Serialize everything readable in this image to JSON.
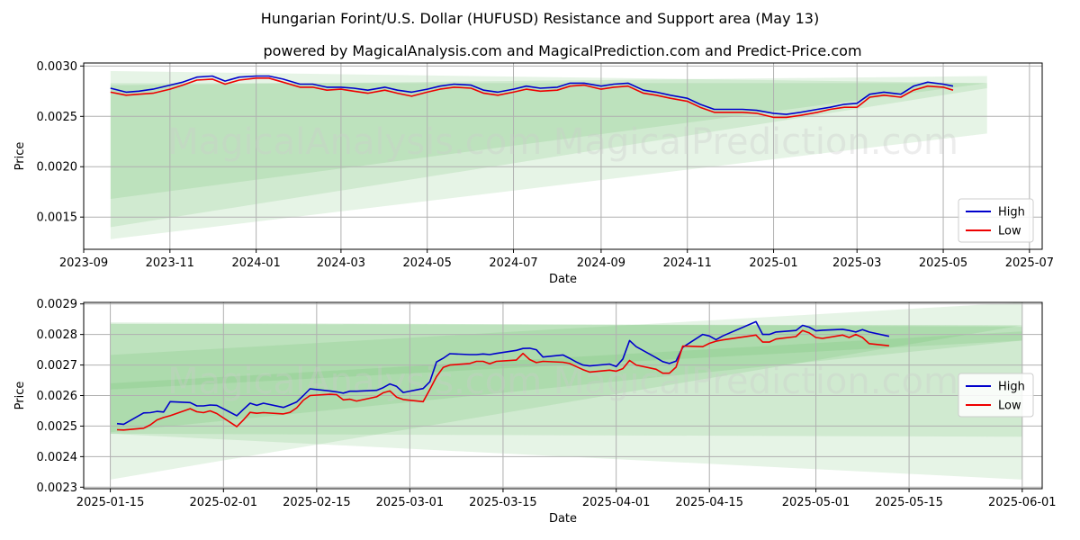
{
  "title": "Hungarian Forint/U.S. Dollar (HUFUSD) Resistance and Support area (May 13)",
  "subtitle": "powered by MagicalAnalysis.com and MagicalPrediction.com and Predict-Price.com",
  "watermark": "MagicalAnalysis.com    MagicalPrediction.com",
  "colors": {
    "high": "#0000cc",
    "low": "#ee0000",
    "band": "#4caf50",
    "grid": "#b0b0b0"
  },
  "chart_data": [
    {
      "type": "line",
      "xlabel": "Date",
      "ylabel": "Price",
      "xlim": [
        "2023-09-01",
        "2025-07-10"
      ],
      "ylim": [
        0.00118,
        0.00303
      ],
      "xticks": [
        "2023-09",
        "2023-11",
        "2024-01",
        "2024-03",
        "2024-05",
        "2024-07",
        "2024-09",
        "2024-11",
        "2025-01",
        "2025-03",
        "2025-05",
        "2025-07"
      ],
      "yticks": [
        "0.0015",
        "0.0020",
        "0.0025",
        "0.0030"
      ],
      "grid": true,
      "legend_position": "bottom-right",
      "bands": [
        {
          "x": [
            "2023-09-20",
            "2025-06-01"
          ],
          "upper": [
            0.00295,
            0.00283
          ],
          "lower": [
            0.00168,
            0.00283
          ]
        },
        {
          "x": [
            "2023-09-20",
            "2025-06-01"
          ],
          "upper": [
            0.00281,
            0.0029
          ],
          "lower": [
            0.00128,
            0.00233
          ]
        },
        {
          "x": [
            "2023-09-20",
            "2025-06-01"
          ],
          "upper": [
            0.00283,
            0.00283
          ],
          "lower": [
            0.0014,
            0.00278
          ]
        },
        {
          "x": [
            "2023-09-20",
            "2025-06-01"
          ],
          "upper": [
            0.00275,
            0.00247
          ],
          "lower": [
            0.00275,
            0.00247
          ]
        }
      ],
      "series": [
        {
          "name": "High",
          "x": [
            "2023-09-20",
            "2023-10-01",
            "2023-10-10",
            "2023-10-20",
            "2023-11-01",
            "2023-11-10",
            "2023-11-20",
            "2023-12-01",
            "2023-12-10",
            "2023-12-20",
            "2024-01-01",
            "2024-01-10",
            "2024-01-20",
            "2024-02-01",
            "2024-02-10",
            "2024-02-20",
            "2024-03-01",
            "2024-03-10",
            "2024-03-20",
            "2024-04-01",
            "2024-04-10",
            "2024-04-20",
            "2024-05-01",
            "2024-05-10",
            "2024-05-20",
            "2024-06-01",
            "2024-06-10",
            "2024-06-20",
            "2024-07-01",
            "2024-07-10",
            "2024-07-20",
            "2024-08-01",
            "2024-08-10",
            "2024-08-20",
            "2024-09-01",
            "2024-09-10",
            "2024-09-20",
            "2024-10-01",
            "2024-10-10",
            "2024-10-20",
            "2024-11-01",
            "2024-11-10",
            "2024-11-20",
            "2024-12-01",
            "2024-12-10",
            "2024-12-20",
            "2025-01-01",
            "2025-01-10",
            "2025-01-20",
            "2025-02-01",
            "2025-02-10",
            "2025-02-20",
            "2025-03-01",
            "2025-03-10",
            "2025-03-20",
            "2025-04-01",
            "2025-04-10",
            "2025-04-20",
            "2025-05-01",
            "2025-05-08"
          ],
          "values": [
            0.00278,
            0.00274,
            0.00275,
            0.00277,
            0.00281,
            0.00284,
            0.00289,
            0.0029,
            0.00285,
            0.00289,
            0.0029,
            0.0029,
            0.00287,
            0.00282,
            0.00282,
            0.00279,
            0.00279,
            0.00278,
            0.00276,
            0.00279,
            0.00276,
            0.00274,
            0.00277,
            0.0028,
            0.00282,
            0.00281,
            0.00276,
            0.00274,
            0.00277,
            0.0028,
            0.00278,
            0.00279,
            0.00283,
            0.00283,
            0.0028,
            0.00282,
            0.00283,
            0.00276,
            0.00274,
            0.00271,
            0.00268,
            0.00262,
            0.00257,
            0.00257,
            0.00257,
            0.00256,
            0.00253,
            0.00252,
            0.00254,
            0.00257,
            0.00259,
            0.00262,
            0.00263,
            0.00272,
            0.00274,
            0.00272,
            0.0028,
            0.00284,
            0.00282,
            0.0028
          ]
        },
        {
          "name": "Low",
          "x": [
            "2023-09-20",
            "2023-10-01",
            "2023-10-10",
            "2023-10-20",
            "2023-11-01",
            "2023-11-10",
            "2023-11-20",
            "2023-12-01",
            "2023-12-10",
            "2023-12-20",
            "2024-01-01",
            "2024-01-10",
            "2024-01-20",
            "2024-02-01",
            "2024-02-10",
            "2024-02-20",
            "2024-03-01",
            "2024-03-10",
            "2024-03-20",
            "2024-04-01",
            "2024-04-10",
            "2024-04-20",
            "2024-05-01",
            "2024-05-10",
            "2024-05-20",
            "2024-06-01",
            "2024-06-10",
            "2024-06-20",
            "2024-07-01",
            "2024-07-10",
            "2024-07-20",
            "2024-08-01",
            "2024-08-10",
            "2024-08-20",
            "2024-09-01",
            "2024-09-10",
            "2024-09-20",
            "2024-10-01",
            "2024-10-10",
            "2024-10-20",
            "2024-11-01",
            "2024-11-10",
            "2024-11-20",
            "2024-12-01",
            "2024-12-10",
            "2024-12-20",
            "2025-01-01",
            "2025-01-10",
            "2025-01-20",
            "2025-02-01",
            "2025-02-10",
            "2025-02-20",
            "2025-03-01",
            "2025-03-10",
            "2025-03-20",
            "2025-04-01",
            "2025-04-10",
            "2025-04-20",
            "2025-05-01",
            "2025-05-08"
          ],
          "values": [
            0.00274,
            0.00271,
            0.00272,
            0.00273,
            0.00277,
            0.00281,
            0.00286,
            0.00287,
            0.00282,
            0.00286,
            0.00288,
            0.00288,
            0.00284,
            0.00279,
            0.00279,
            0.00276,
            0.00277,
            0.00275,
            0.00273,
            0.00276,
            0.00273,
            0.0027,
            0.00274,
            0.00277,
            0.00279,
            0.00278,
            0.00273,
            0.00271,
            0.00274,
            0.00277,
            0.00275,
            0.00276,
            0.0028,
            0.00281,
            0.00277,
            0.00279,
            0.0028,
            0.00273,
            0.00271,
            0.00268,
            0.00265,
            0.00259,
            0.00254,
            0.00254,
            0.00254,
            0.00253,
            0.00249,
            0.00249,
            0.00251,
            0.00254,
            0.00257,
            0.00259,
            0.00259,
            0.00269,
            0.00271,
            0.00269,
            0.00276,
            0.0028,
            0.00279,
            0.00276
          ]
        }
      ]
    },
    {
      "type": "line",
      "xlabel": "Date",
      "ylabel": "Price",
      "xlim": [
        "2025-01-11",
        "2025-06-04"
      ],
      "ylim": [
        0.002295,
        0.002905
      ],
      "xticks": [
        "2025-01-15",
        "2025-02-01",
        "2025-02-15",
        "2025-03-01",
        "2025-03-15",
        "2025-04-01",
        "2025-04-15",
        "2025-05-01",
        "2025-05-15",
        "2025-06-01"
      ],
      "yticks": [
        "0.0023",
        "0.0024",
        "0.0025",
        "0.0026",
        "0.0027",
        "0.0028",
        "0.0029"
      ],
      "grid": true,
      "legend_position": "right",
      "bands": [
        {
          "x": [
            "2025-01-15",
            "2025-06-01"
          ],
          "upper": [
            0.002835,
            0.00283
          ],
          "lower": [
            0.002325,
            0.00283
          ]
        },
        {
          "x": [
            "2025-01-15",
            "2025-06-01"
          ],
          "upper": [
            0.002733,
            0.002905
          ],
          "lower": [
            0.002475,
            0.002325
          ]
        },
        {
          "x": [
            "2025-01-15",
            "2025-06-01"
          ],
          "upper": [
            0.002835,
            0.00283
          ],
          "lower": [
            0.00262,
            0.00278
          ]
        },
        {
          "x": [
            "2025-01-15",
            "2025-06-01"
          ],
          "upper": [
            0.00264,
            0.00281
          ],
          "lower": [
            0.002475,
            0.002465
          ]
        },
        {
          "x": [
            "2025-01-15",
            "2025-06-01"
          ],
          "upper": [
            0.00284,
            0.002825
          ],
          "lower": [
            0.00248,
            0.00278
          ]
        }
      ],
      "series": [
        {
          "name": "High",
          "x": [
            "2025-01-16",
            "2025-01-17",
            "2025-01-20",
            "2025-01-21",
            "2025-01-22",
            "2025-01-23",
            "2025-01-24",
            "2025-01-27",
            "2025-01-28",
            "2025-01-29",
            "2025-01-30",
            "2025-01-31",
            "2025-02-03",
            "2025-02-04",
            "2025-02-05",
            "2025-02-06",
            "2025-02-07",
            "2025-02-10",
            "2025-02-11",
            "2025-02-12",
            "2025-02-13",
            "2025-02-14",
            "2025-02-17",
            "2025-02-18",
            "2025-02-19",
            "2025-02-20",
            "2025-02-21",
            "2025-02-24",
            "2025-02-25",
            "2025-02-26",
            "2025-02-27",
            "2025-02-28",
            "2025-03-03",
            "2025-03-04",
            "2025-03-05",
            "2025-03-06",
            "2025-03-07",
            "2025-03-10",
            "2025-03-11",
            "2025-03-12",
            "2025-03-13",
            "2025-03-14",
            "2025-03-17",
            "2025-03-18",
            "2025-03-19",
            "2025-03-20",
            "2025-03-21",
            "2025-03-24",
            "2025-03-25",
            "2025-03-26",
            "2025-03-27",
            "2025-03-28",
            "2025-03-31",
            "2025-04-01",
            "2025-04-02",
            "2025-04-03",
            "2025-04-04",
            "2025-04-07",
            "2025-04-08",
            "2025-04-09",
            "2025-04-10",
            "2025-04-11",
            "2025-04-14",
            "2025-04-15",
            "2025-04-16",
            "2025-04-17",
            "2025-04-22",
            "2025-04-23",
            "2025-04-24",
            "2025-04-25",
            "2025-04-28",
            "2025-04-29",
            "2025-04-30",
            "2025-05-01",
            "2025-05-02",
            "2025-05-05",
            "2025-05-06",
            "2025-05-07",
            "2025-05-08",
            "2025-05-09",
            "2025-05-12"
          ],
          "values": [
            0.002508,
            0.002506,
            0.002543,
            0.002544,
            0.002548,
            0.002546,
            0.00258,
            0.002577,
            0.002566,
            0.002566,
            0.002569,
            0.002568,
            0.002534,
            0.002555,
            0.002575,
            0.002568,
            0.002575,
            0.002561,
            0.00257,
            0.002579,
            0.0026,
            0.002622,
            0.002615,
            0.002612,
            0.002608,
            0.002614,
            0.002614,
            0.002617,
            0.002626,
            0.002638,
            0.00263,
            0.00261,
            0.002623,
            0.002645,
            0.00271,
            0.002722,
            0.002737,
            0.002734,
            0.002734,
            0.002736,
            0.002734,
            0.002738,
            0.002748,
            0.002754,
            0.002755,
            0.00275,
            0.002726,
            0.002733,
            0.002722,
            0.00271,
            0.0027,
            0.002697,
            0.002703,
            0.002695,
            0.00272,
            0.00278,
            0.00276,
            0.002724,
            0.002711,
            0.002705,
            0.002713,
            0.002758,
            0.0028,
            0.002795,
            0.002783,
            0.002795,
            0.002842,
            0.0028,
            0.0028,
            0.002808,
            0.002813,
            0.00283,
            0.002824,
            0.002812,
            0.002814,
            0.002817,
            0.002813,
            0.002808,
            0.002816,
            0.002808,
            0.002794
          ]
        },
        {
          "name": "Low",
          "x": [
            "2025-01-16",
            "2025-01-17",
            "2025-01-20",
            "2025-01-21",
            "2025-01-22",
            "2025-01-23",
            "2025-01-24",
            "2025-01-27",
            "2025-01-28",
            "2025-01-29",
            "2025-01-30",
            "2025-01-31",
            "2025-02-03",
            "2025-02-04",
            "2025-02-05",
            "2025-02-06",
            "2025-02-07",
            "2025-02-10",
            "2025-02-11",
            "2025-02-12",
            "2025-02-13",
            "2025-02-14",
            "2025-02-17",
            "2025-02-18",
            "2025-02-19",
            "2025-02-20",
            "2025-02-21",
            "2025-02-24",
            "2025-02-25",
            "2025-02-26",
            "2025-02-27",
            "2025-02-28",
            "2025-03-03",
            "2025-03-04",
            "2025-03-05",
            "2025-03-06",
            "2025-03-07",
            "2025-03-10",
            "2025-03-11",
            "2025-03-12",
            "2025-03-13",
            "2025-03-14",
            "2025-03-17",
            "2025-03-18",
            "2025-03-19",
            "2025-03-20",
            "2025-03-21",
            "2025-03-24",
            "2025-03-25",
            "2025-03-26",
            "2025-03-27",
            "2025-03-28",
            "2025-03-31",
            "2025-04-01",
            "2025-04-02",
            "2025-04-03",
            "2025-04-04",
            "2025-04-07",
            "2025-04-08",
            "2025-04-09",
            "2025-04-10",
            "2025-04-11",
            "2025-04-14",
            "2025-04-15",
            "2025-04-16",
            "2025-04-17",
            "2025-04-22",
            "2025-04-23",
            "2025-04-24",
            "2025-04-25",
            "2025-04-28",
            "2025-04-29",
            "2025-04-30",
            "2025-05-01",
            "2025-05-02",
            "2025-05-05",
            "2025-05-06",
            "2025-05-07",
            "2025-05-08",
            "2025-05-09",
            "2025-05-12"
          ],
          "values": [
            0.002488,
            0.002487,
            0.002493,
            0.002504,
            0.00252,
            0.002528,
            0.002534,
            0.002557,
            0.002547,
            0.002544,
            0.00255,
            0.002541,
            0.002498,
            0.00252,
            0.002545,
            0.002542,
            0.002544,
            0.00254,
            0.002545,
            0.00256,
            0.002585,
            0.0026,
            0.002604,
            0.002603,
            0.002586,
            0.002588,
            0.002582,
            0.002596,
            0.002609,
            0.002615,
            0.002595,
            0.002587,
            0.00258,
            0.00262,
            0.002662,
            0.002692,
            0.0027,
            0.002705,
            0.002712,
            0.002712,
            0.002704,
            0.002712,
            0.002716,
            0.002738,
            0.002718,
            0.002708,
            0.002712,
            0.002709,
            0.002705,
            0.002695,
            0.002685,
            0.002677,
            0.002683,
            0.00268,
            0.002688,
            0.002715,
            0.0027,
            0.002686,
            0.002673,
            0.002673,
            0.002693,
            0.002762,
            0.00276,
            0.002771,
            0.002778,
            0.002782,
            0.002798,
            0.002775,
            0.002775,
            0.002785,
            0.002793,
            0.002813,
            0.002805,
            0.00279,
            0.002787,
            0.002798,
            0.00279,
            0.0028,
            0.00279,
            0.00277,
            0.002763
          ]
        }
      ]
    }
  ]
}
